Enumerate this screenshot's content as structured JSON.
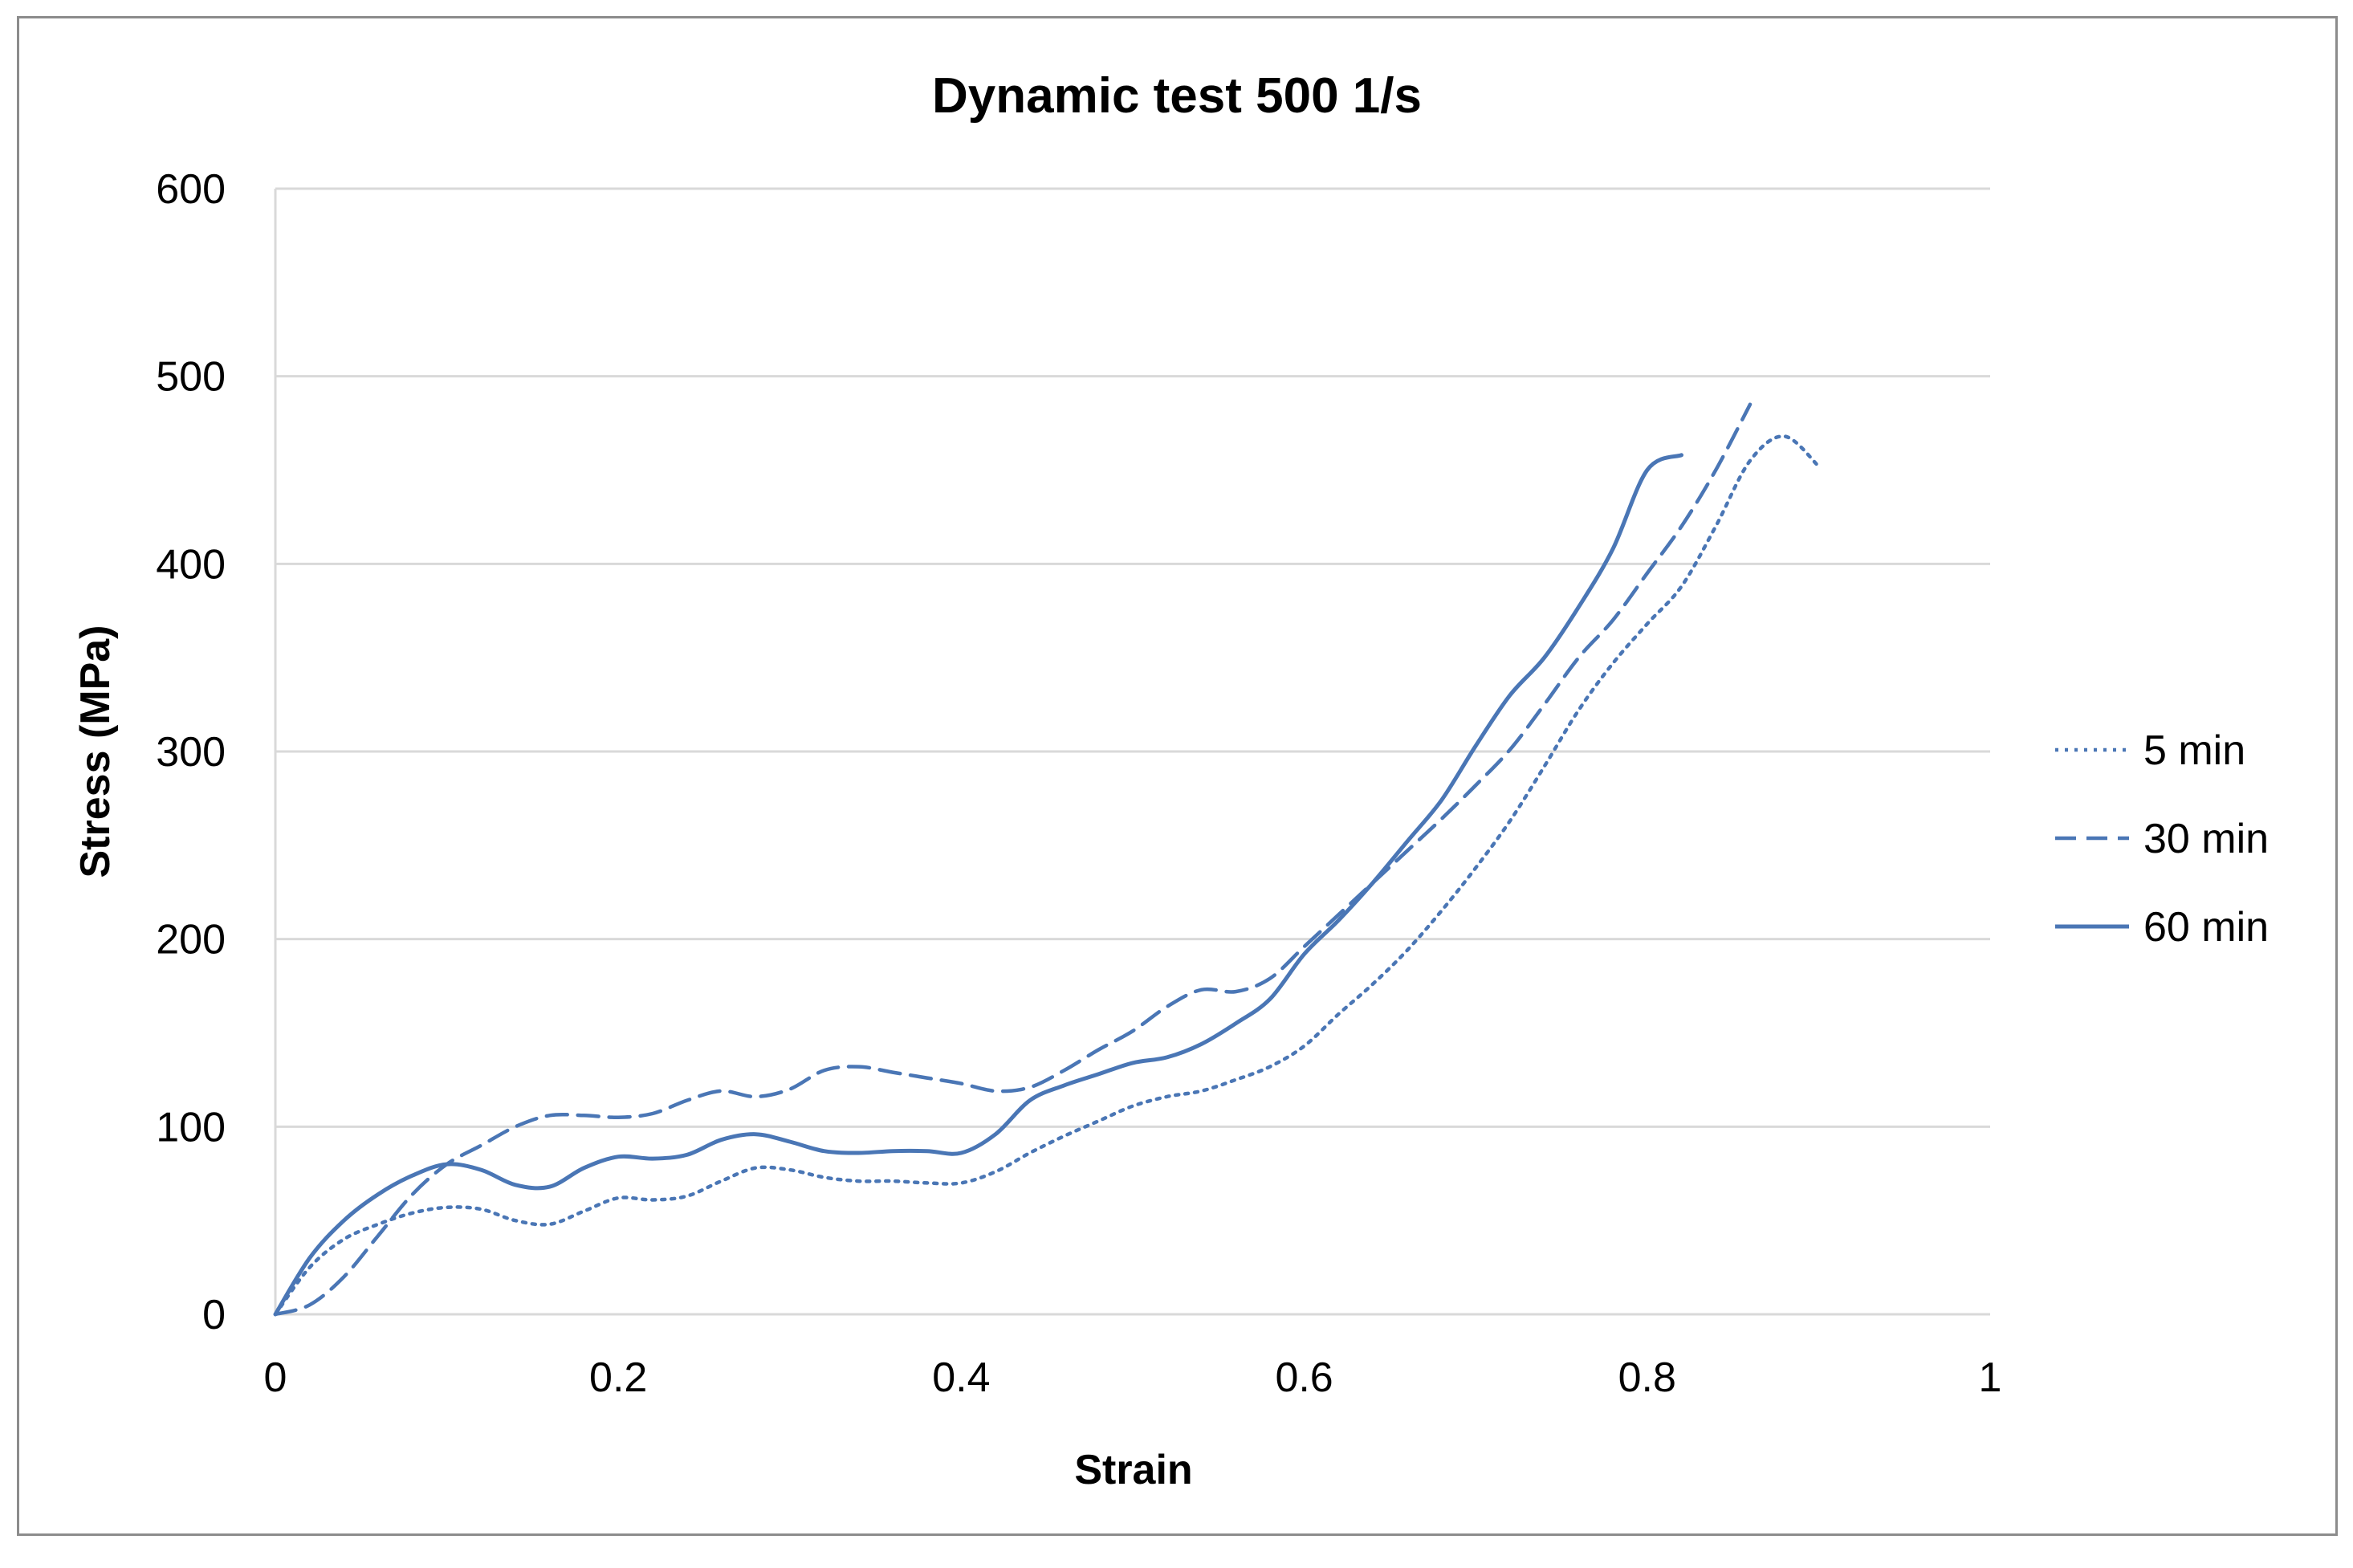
{
  "chart_data": {
    "type": "line",
    "title": "Dynamic test 500 1/s",
    "xlabel": "Strain",
    "ylabel": "Stress (MPa)",
    "xlim": [
      0,
      1
    ],
    "ylim": [
      0,
      600
    ],
    "x_ticks": [
      0,
      0.2,
      0.4,
      0.6,
      0.8,
      1
    ],
    "x_tick_labels": [
      "0",
      "0.2",
      "0.4",
      "0.6",
      "0.8",
      "1"
    ],
    "y_ticks": [
      0,
      100,
      200,
      300,
      400,
      500,
      600
    ],
    "y_tick_labels": [
      "0",
      "100",
      "200",
      "300",
      "400",
      "500",
      "600"
    ],
    "grid": "horizontal",
    "legend_position": "right",
    "line_color": "#4a76b5",
    "series": [
      {
        "name": "5 min",
        "style": "dotted",
        "x": [
          0,
          0.02,
          0.04,
          0.06,
          0.08,
          0.1,
          0.12,
          0.14,
          0.16,
          0.18,
          0.2,
          0.22,
          0.24,
          0.26,
          0.28,
          0.3,
          0.32,
          0.34,
          0.36,
          0.38,
          0.4,
          0.42,
          0.44,
          0.46,
          0.48,
          0.5,
          0.52,
          0.54,
          0.56,
          0.58,
          0.6,
          0.62,
          0.64,
          0.66,
          0.68,
          0.7,
          0.72,
          0.74,
          0.76,
          0.78,
          0.8,
          0.82,
          0.84,
          0.86,
          0.88,
          0.9
        ],
        "y": [
          0,
          25,
          40,
          48,
          54,
          57,
          56,
          50,
          48,
          55,
          62,
          61,
          63,
          71,
          78,
          77,
          73,
          71,
          71,
          70,
          70,
          76,
          86,
          95,
          103,
          111,
          116,
          119,
          125,
          132,
          143,
          160,
          176,
          194,
          215,
          238,
          263,
          292,
          322,
          347,
          368,
          388,
          420,
          455,
          468,
          452
        ]
      },
      {
        "name": "30 min",
        "style": "dashed",
        "x": [
          0,
          0.02,
          0.04,
          0.06,
          0.08,
          0.1,
          0.12,
          0.14,
          0.16,
          0.18,
          0.2,
          0.22,
          0.24,
          0.26,
          0.28,
          0.3,
          0.32,
          0.34,
          0.36,
          0.38,
          0.4,
          0.42,
          0.44,
          0.46,
          0.48,
          0.5,
          0.52,
          0.54,
          0.56,
          0.58,
          0.6,
          0.62,
          0.64,
          0.66,
          0.68,
          0.7,
          0.72,
          0.74,
          0.76,
          0.78,
          0.8,
          0.82,
          0.84,
          0.86
        ],
        "y": [
          0,
          5,
          20,
          42,
          64,
          80,
          90,
          100,
          106,
          106,
          105,
          107,
          114,
          119,
          116,
          120,
          130,
          132,
          129,
          126,
          123,
          119,
          121,
          130,
          141,
          151,
          164,
          173,
          172,
          179,
          196,
          213,
          230,
          247,
          264,
          282,
          301,
          325,
          350,
          370,
          395,
          420,
          450,
          485
        ]
      },
      {
        "name": "60 min",
        "style": "solid",
        "x": [
          0,
          0.02,
          0.04,
          0.06,
          0.08,
          0.1,
          0.12,
          0.14,
          0.16,
          0.18,
          0.2,
          0.22,
          0.24,
          0.26,
          0.28,
          0.3,
          0.32,
          0.34,
          0.36,
          0.38,
          0.4,
          0.42,
          0.44,
          0.46,
          0.48,
          0.5,
          0.52,
          0.54,
          0.56,
          0.58,
          0.6,
          0.62,
          0.64,
          0.66,
          0.68,
          0.7,
          0.72,
          0.74,
          0.76,
          0.78,
          0.8,
          0.82
        ],
        "y": [
          0,
          30,
          50,
          64,
          74,
          80,
          77,
          69,
          68,
          78,
          84,
          83,
          85,
          93,
          96,
          92,
          87,
          86,
          87,
          87,
          86,
          96,
          114,
          122,
          128,
          134,
          137,
          144,
          155,
          168,
          192,
          210,
          230,
          252,
          274,
          303,
          330,
          350,
          377,
          408,
          450,
          458
        ]
      }
    ]
  }
}
